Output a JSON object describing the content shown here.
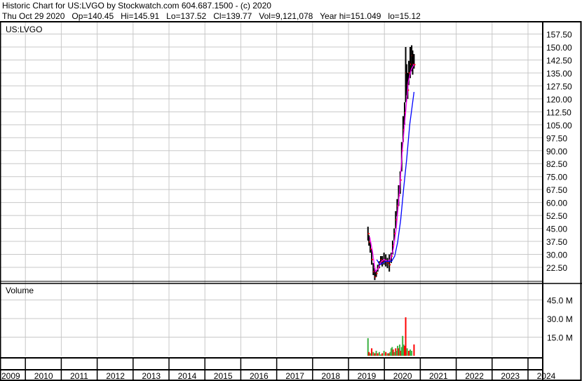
{
  "header": {
    "title": "Historic Chart for US:LVGO by Stockwatch.com 604.687.1500 - (c) 2020",
    "quote": "Thu Oct 29 2020   Op=140.45   Hi=145.91   Lo=137.52   Cl=139.77   Vol=9,121,078   Year hi=151.049   lo=15.12"
  },
  "chart_data": [
    {
      "type": "line",
      "title": "US:LVGO",
      "xlim": [
        2009,
        2024
      ],
      "ylim": [
        14.4,
        164.6
      ],
      "grid": true,
      "x_ticks": [
        "2009",
        "2010",
        "2011",
        "2012",
        "2013",
        "2014",
        "2015",
        "2016",
        "2017",
        "2018",
        "2019",
        "2020",
        "2021",
        "2022",
        "2023",
        "2024"
      ],
      "y_ticks": [
        "157.50",
        "150.00",
        "142.50",
        "135.00",
        "127.50",
        "120.00",
        "112.50",
        "105.00",
        "97.50",
        "90.00",
        "82.50",
        "75.00",
        "67.50",
        "60.00",
        "52.50",
        "45.00",
        "37.50",
        "30.00",
        "22.50"
      ],
      "colors": {
        "price": "#000000",
        "down_tick": "#ff0000",
        "ma_short": "#ff00ff",
        "ma_long": "#0000ff"
      },
      "series": [
        {
          "role": "price",
          "x": [
            "2019-07-18",
            "2019-07-28",
            "2019-08-10",
            "2019-08-25",
            "2019-09-10",
            "2019-09-25",
            "2019-10-10",
            "2019-10-25",
            "2019-11-10",
            "2019-11-25",
            "2019-12-10",
            "2019-12-28",
            "2020-01-15",
            "2020-02-01",
            "2020-02-20",
            "2020-03-10",
            "2020-03-25",
            "2020-04-10",
            "2020-04-25",
            "2020-05-10",
            "2020-05-25",
            "2020-06-10",
            "2020-06-25",
            "2020-07-10",
            "2020-07-25",
            "2020-08-05",
            "2020-08-15",
            "2020-08-25",
            "2020-09-05",
            "2020-09-20",
            "2020-10-05",
            "2020-10-15",
            "2020-10-29"
          ],
          "high": [
            46,
            41,
            37,
            33,
            25,
            22,
            21,
            24,
            26,
            29,
            29,
            31,
            30,
            28,
            30,
            31,
            38,
            45,
            55,
            62,
            70,
            78,
            95,
            110,
            118,
            150,
            140,
            135,
            142,
            150,
            151,
            148,
            145.91
          ],
          "low": [
            38,
            35,
            31,
            24,
            18,
            15.12,
            17,
            20,
            22,
            24,
            23,
            24,
            23,
            22,
            20,
            25,
            30,
            38,
            45,
            52,
            58,
            65,
            78,
            95,
            105,
            118,
            122,
            120,
            128,
            132,
            136,
            134,
            137.52
          ],
          "close": [
            42,
            37,
            33,
            27,
            20,
            17,
            19,
            22,
            25,
            27,
            26,
            27,
            26,
            25,
            24,
            29,
            35,
            42,
            50,
            58,
            64,
            73,
            90,
            102,
            112,
            135,
            128,
            125,
            135,
            140,
            145,
            140,
            139.77
          ]
        },
        {
          "role": "ma_short",
          "x": [
            "2019-08-05",
            "2019-09-01",
            "2019-10-01",
            "2019-11-01",
            "2019-12-01",
            "2020-01-01",
            "2020-02-01",
            "2020-03-01",
            "2020-04-01",
            "2020-05-01",
            "2020-06-01",
            "2020-07-01",
            "2020-08-01",
            "2020-09-01",
            "2020-10-01",
            "2020-10-29"
          ],
          "values": [
            40,
            32,
            20,
            22,
            26,
            27,
            26,
            27,
            33,
            45,
            65,
            90,
            110,
            130,
            137,
            140
          ]
        },
        {
          "role": "ma_long",
          "x": [
            "2019-10-15",
            "2019-11-15",
            "2019-12-15",
            "2020-01-15",
            "2020-02-15",
            "2020-03-15",
            "2020-04-15",
            "2020-05-15",
            "2020-06-15",
            "2020-07-15",
            "2020-08-15",
            "2020-09-15",
            "2020-10-29"
          ],
          "values": [
            27,
            24,
            25,
            26,
            26,
            26,
            29,
            37,
            50,
            68,
            85,
            105,
            124
          ]
        }
      ]
    },
    {
      "type": "bar",
      "title": "Volume",
      "ylim": [
        0,
        55
      ],
      "y_ticks": [
        "45.0 M",
        "30.0 M",
        "15.0 M"
      ],
      "colors": {
        "up": "#3cb043",
        "down": "#ff0000"
      },
      "x": [
        "2019-07-18",
        "2019-07-28",
        "2019-08-10",
        "2019-08-25",
        "2019-09-10",
        "2019-09-25",
        "2019-10-10",
        "2019-10-25",
        "2019-11-10",
        "2019-11-25",
        "2019-12-10",
        "2019-12-28",
        "2020-01-15",
        "2020-02-01",
        "2020-02-15",
        "2020-02-28",
        "2020-03-10",
        "2020-03-20",
        "2020-03-30",
        "2020-04-10",
        "2020-04-25",
        "2020-05-05",
        "2020-05-15",
        "2020-05-25",
        "2020-06-05",
        "2020-06-15",
        "2020-06-25",
        "2020-07-05",
        "2020-07-15",
        "2020-07-25",
        "2020-08-05",
        "2020-08-20",
        "2020-09-05",
        "2020-09-20",
        "2020-10-05",
        "2020-10-29"
      ],
      "values": [
        14.2,
        3,
        2,
        6,
        3,
        2,
        4,
        2,
        3,
        1,
        2,
        4,
        3,
        2,
        2,
        3,
        6,
        7,
        5,
        3,
        6,
        4,
        8,
        6,
        9,
        4,
        7,
        16,
        9,
        8,
        31,
        6,
        4,
        5,
        4,
        9.1
      ],
      "direction": [
        "up",
        "down",
        "up",
        "down",
        "up",
        "down",
        "up",
        "down",
        "up",
        "up",
        "down",
        "up",
        "down",
        "up",
        "down",
        "up",
        "up",
        "up",
        "down",
        "up",
        "down",
        "up",
        "up",
        "down",
        "up",
        "down",
        "up",
        "up",
        "up",
        "down",
        "down",
        "up",
        "down",
        "up",
        "up",
        "down"
      ]
    }
  ]
}
